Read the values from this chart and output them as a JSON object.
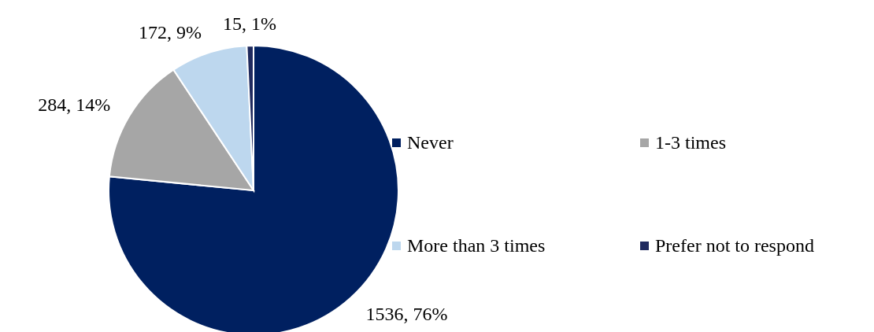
{
  "chart_data": {
    "type": "pie",
    "categories": [
      "Never",
      "1-3 times",
      "More than 3 times",
      "Prefer not to respond"
    ],
    "values": [
      1536,
      284,
      172,
      15
    ],
    "colors": [
      "#002060",
      "#a6a6a6",
      "#bdd7ee",
      "#1f2a5e"
    ],
    "value_labels": [
      "1536, 76%",
      "284, 14%",
      "172, 9%",
      "15, 1%"
    ],
    "legend": "right"
  }
}
